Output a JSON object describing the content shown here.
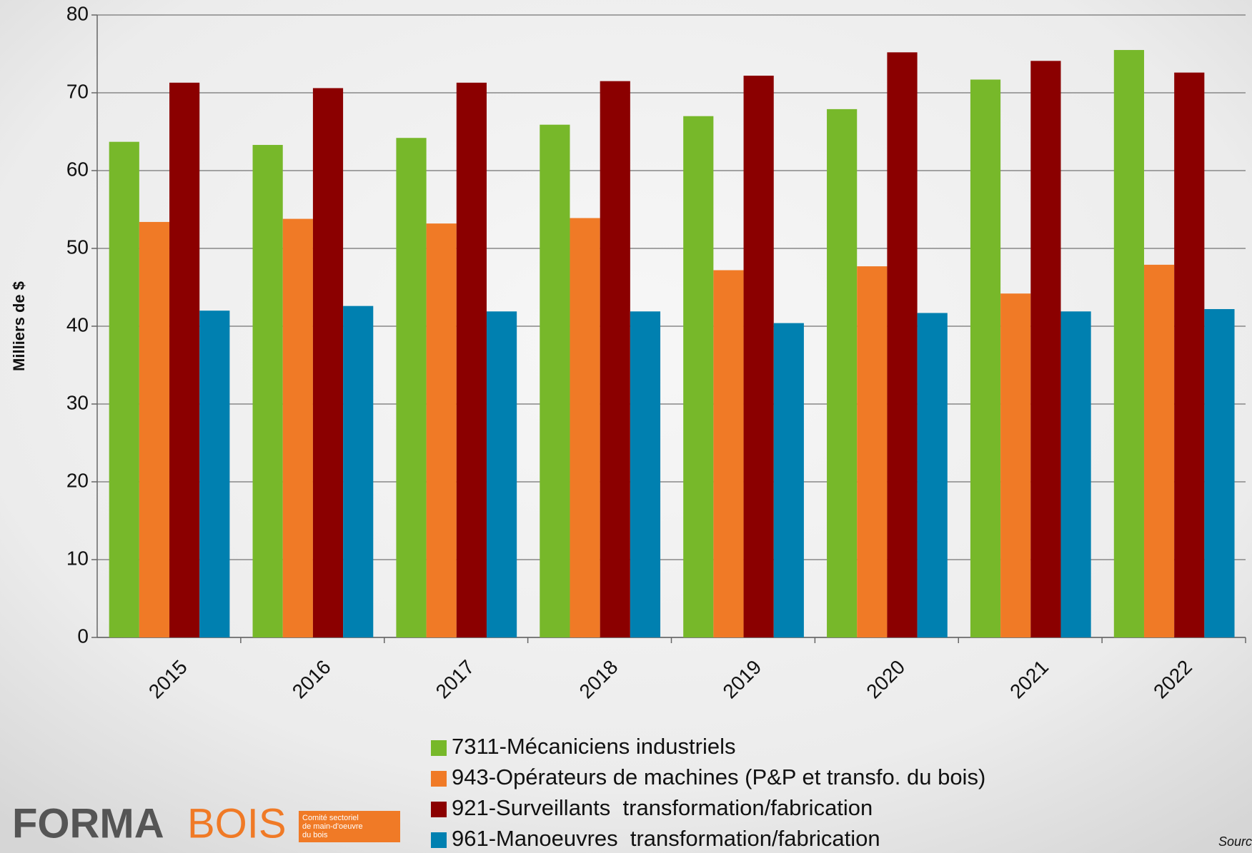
{
  "chart_data": {
    "type": "bar",
    "y_label": "Milliers de $",
    "categories": [
      "2015",
      "2016",
      "2017",
      "2018",
      "2019",
      "2020",
      "2021",
      "2022"
    ],
    "series": [
      {
        "name": "7311-Mécaniciens industriels",
        "color": "#77b82a",
        "values": [
          63.7,
          63.3,
          64.2,
          65.9,
          67.0,
          67.9,
          71.7,
          75.5
        ]
      },
      {
        "name": "943-Opérateurs de machines (P&P et transfo. du bois)",
        "color": "#f07a26",
        "values": [
          53.4,
          53.8,
          53.2,
          53.9,
          47.2,
          47.7,
          44.2,
          47.9
        ]
      },
      {
        "name": "921-Surveillants  transformation/fabrication",
        "color": "#8b0000",
        "values": [
          71.3,
          70.6,
          71.3,
          71.5,
          72.2,
          75.2,
          74.1,
          72.6
        ]
      },
      {
        "name": "961-Manoeuvres  transformation/fabrication",
        "color": "#0080b0",
        "values": [
          42.0,
          42.6,
          41.9,
          41.9,
          40.4,
          41.7,
          41.9,
          42.2
        ]
      }
    ],
    "ylim": [
      0,
      80
    ],
    "yticks": [
      0,
      10,
      20,
      30,
      40,
      50,
      60,
      70,
      80
    ],
    "grid": true
  },
  "logo": {
    "dark": "FORMA",
    "light": "BOIS",
    "tagline": [
      "Comité sectoriel",
      "de main-d'oeuvre",
      "du bois"
    ]
  },
  "source": "Sourc"
}
